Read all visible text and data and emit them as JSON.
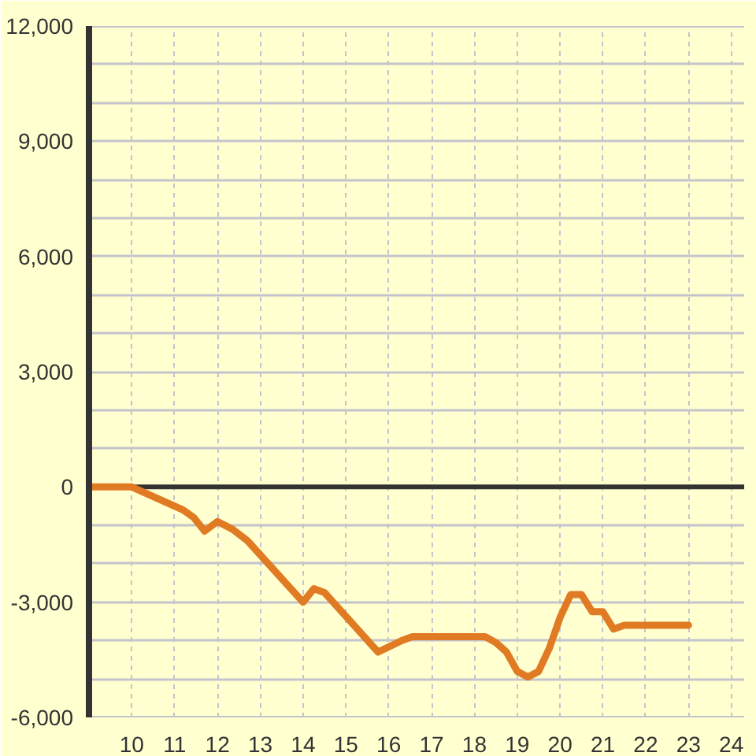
{
  "chart_data": {
    "type": "line",
    "x": [
      9,
      10,
      11.2,
      11.45,
      11.7,
      12,
      12.35,
      12.7,
      14,
      14.25,
      14.5,
      15.75,
      16.3,
      16.55,
      18.25,
      18.5,
      18.75,
      19,
      19.25,
      19.5,
      19.75,
      20,
      20.25,
      20.5,
      20.75,
      21,
      21.25,
      21.5,
      23
    ],
    "values": [
      0,
      0,
      -600,
      -800,
      -1150,
      -900,
      -1100,
      -1400,
      -3000,
      -2650,
      -2750,
      -4300,
      -4000,
      -3900,
      -3900,
      -4050,
      -4300,
      -4800,
      -4950,
      -4800,
      -4200,
      -3400,
      -2800,
      -2800,
      -3250,
      -3250,
      -3700,
      -3600,
      -3600
    ],
    "color": "#e07b24",
    "line_style": "solid",
    "xlim": [
      9,
      24.3
    ],
    "xticks": [
      10,
      11,
      12,
      13,
      14,
      15,
      16,
      17,
      18,
      19,
      20,
      21,
      22,
      23,
      24
    ],
    "ylim": [
      -6000,
      12000
    ],
    "yticks": [
      {
        "value": -6000,
        "label": "-6,000"
      },
      {
        "value": -5000,
        "label": null
      },
      {
        "value": -4000,
        "label": null
      },
      {
        "value": -3000,
        "label": "-3,000"
      },
      {
        "value": -2000,
        "label": null
      },
      {
        "value": -1000,
        "label": null
      },
      0,
      {
        "value": 1000,
        "label": null
      },
      {
        "value": 2000,
        "label": null
      },
      {
        "value": 3000,
        "label": "3,000"
      },
      {
        "value": 4000,
        "label": null
      },
      {
        "value": 5000,
        "label": null
      },
      {
        "value": 6000,
        "label": "6,000"
      },
      {
        "value": 7000,
        "label": null
      },
      {
        "value": 8000,
        "label": null
      },
      {
        "value": 9000,
        "label": "9,000"
      },
      {
        "value": 10000,
        "label": null
      },
      {
        "value": 11000,
        "label": null
      },
      {
        "value": 12000,
        "label": "12,000"
      }
    ],
    "grid": true,
    "ref_lines": [
      {
        "axis": "y",
        "value": 0,
        "color": "#333333"
      }
    ]
  }
}
